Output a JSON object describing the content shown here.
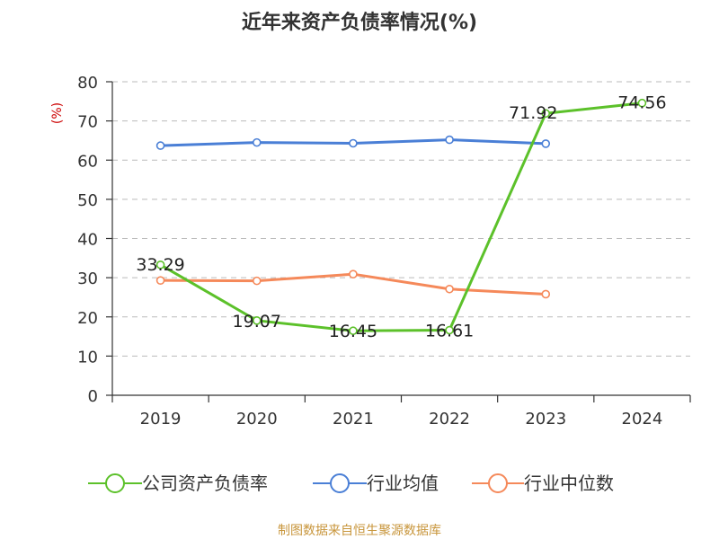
{
  "chart_data": {
    "type": "line",
    "title": "近年来资产负债率情况(%)",
    "ylabel": "(%)",
    "xlabel": "",
    "categories": [
      "2019",
      "2020",
      "2021",
      "2022",
      "2023",
      "2024"
    ],
    "ylim": [
      0,
      80
    ],
    "yticks": [
      0,
      10,
      20,
      30,
      40,
      50,
      60,
      70,
      80
    ],
    "grid": true,
    "legend_position": "bottom",
    "series": [
      {
        "name": "公司资产负债率",
        "color": "#5cc12a",
        "values": [
          33.29,
          19.07,
          16.45,
          16.61,
          71.92,
          74.56
        ],
        "labels": [
          "33.29",
          "19.07",
          "16.45",
          "16.61",
          "71.92",
          "74.56"
        ]
      },
      {
        "name": "行业均值",
        "color": "#4a7fd6",
        "values": [
          63.7,
          64.5,
          64.3,
          65.2,
          64.2,
          null
        ]
      },
      {
        "name": "行业中位数",
        "color": "#f5895a",
        "values": [
          29.3,
          29.2,
          30.9,
          27.1,
          25.8,
          null
        ]
      }
    ]
  },
  "source": "制图数据来自恒生聚源数据库"
}
